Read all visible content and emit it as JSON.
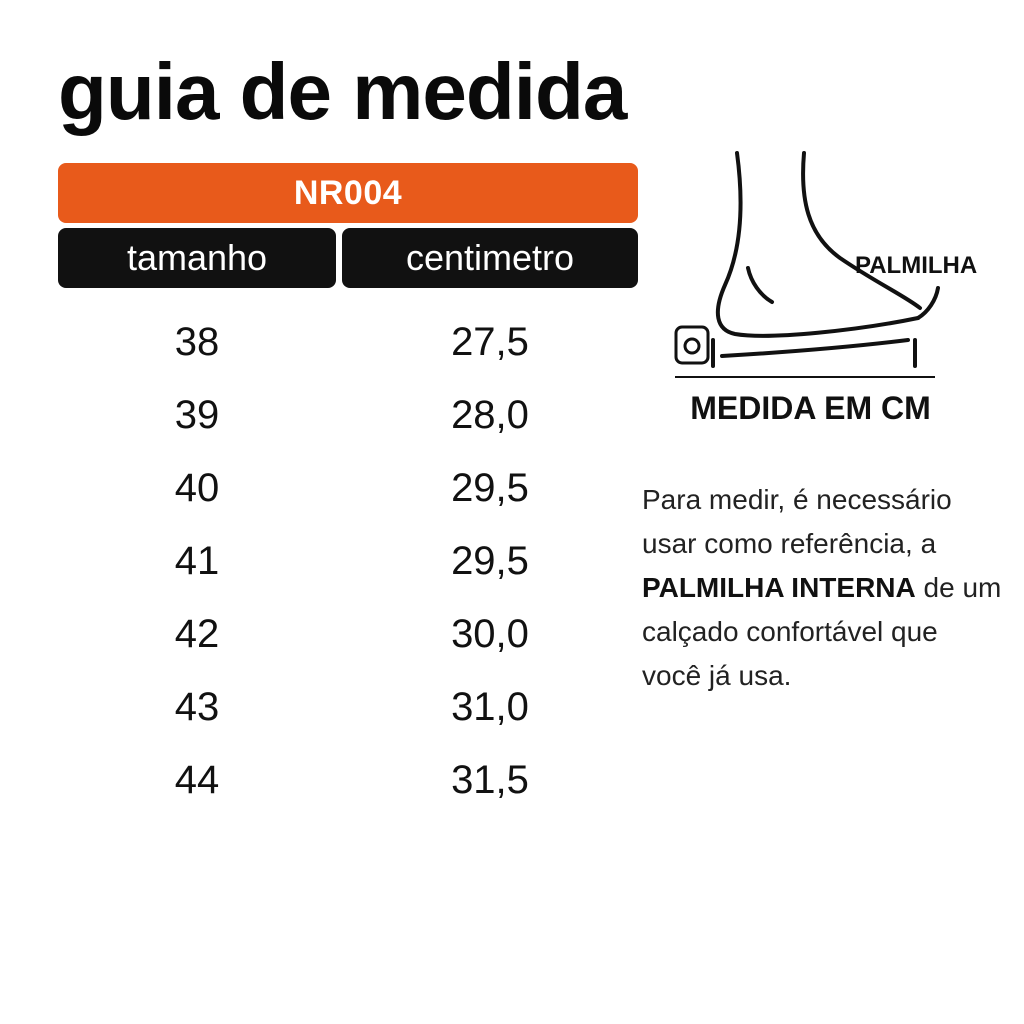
{
  "title": "guia de medida",
  "model": "NR004",
  "colors": {
    "accent": "#E85A1B",
    "header_bg": "#111111"
  },
  "table": {
    "headers": [
      "tamanho",
      "centimetro"
    ],
    "rows": [
      {
        "size": "38",
        "cm": "27,5"
      },
      {
        "size": "39",
        "cm": "28,0"
      },
      {
        "size": "40",
        "cm": "29,5"
      },
      {
        "size": "41",
        "cm": "29,5"
      },
      {
        "size": "42",
        "cm": "30,0"
      },
      {
        "size": "43",
        "cm": "31,0"
      },
      {
        "size": "44",
        "cm": "31,5"
      }
    ]
  },
  "illustration": {
    "icon": "foot-insole-icon",
    "label": "PALMILHA",
    "caption": "MEDIDA EM CM"
  },
  "instructions": {
    "part1": "Para medir, é necessário usar como referência, a",
    "emphasis": "PALMILHA INTERNA",
    "part2": "de um calçado confortável que você já usa."
  }
}
